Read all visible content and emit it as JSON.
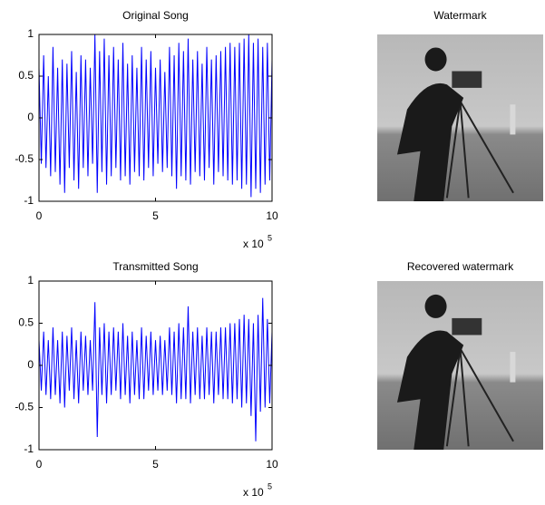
{
  "chart_data": [
    {
      "type": "line",
      "title": "Original Song",
      "xlim": [
        0,
        10
      ],
      "xticks": [
        0,
        5,
        10
      ],
      "ylim": [
        -1,
        1
      ],
      "yticks": [
        -1,
        -0.5,
        0,
        0.5,
        1
      ],
      "axis_multiplier": "x 10",
      "axis_exponent": 5,
      "series": [
        {
          "color": "#0000ff",
          "x": [
            0,
            0.1,
            0.2,
            0.3,
            0.4,
            0.5,
            0.6,
            0.7,
            0.8,
            0.9,
            1,
            1.1,
            1.2,
            1.3,
            1.4,
            1.5,
            1.6,
            1.7,
            1.8,
            1.9,
            2,
            2.1,
            2.2,
            2.3,
            2.4,
            2.5,
            2.6,
            2.7,
            2.8,
            2.9,
            3,
            3.1,
            3.2,
            3.3,
            3.4,
            3.5,
            3.6,
            3.7,
            3.8,
            3.9,
            4,
            4.1,
            4.2,
            4.3,
            4.4,
            4.5,
            4.6,
            4.7,
            4.8,
            4.9,
            5,
            5.1,
            5.2,
            5.3,
            5.4,
            5.5,
            5.6,
            5.7,
            5.8,
            5.9,
            6,
            6.1,
            6.2,
            6.3,
            6.4,
            6.5,
            6.6,
            6.7,
            6.8,
            6.9,
            7,
            7.1,
            7.2,
            7.3,
            7.4,
            7.5,
            7.6,
            7.7,
            7.8,
            7.9,
            8,
            8.1,
            8.2,
            8.3,
            8.4,
            8.5,
            8.6,
            8.7,
            8.8,
            8.9,
            9,
            9.1,
            9.2,
            9.3,
            9.4,
            9.5,
            9.6,
            9.7,
            9.8,
            9.9,
            10
          ],
          "values": [
            0.6,
            -0.55,
            0.75,
            -0.6,
            0.5,
            -0.7,
            0.85,
            -0.65,
            0.6,
            -0.8,
            0.7,
            -0.9,
            0.65,
            -0.6,
            0.8,
            -0.75,
            0.55,
            -0.85,
            0.75,
            -0.6,
            0.7,
            -0.7,
            0.6,
            -0.55,
            1,
            -0.9,
            0.8,
            -0.65,
            0.95,
            -0.8,
            0.75,
            -0.7,
            0.85,
            -0.6,
            0.7,
            -0.75,
            0.9,
            -0.7,
            0.65,
            -0.8,
            0.75,
            -0.65,
            0.6,
            -0.7,
            0.85,
            -0.75,
            0.7,
            -0.6,
            0.8,
            -0.7,
            0.6,
            -0.55,
            0.7,
            -0.65,
            0.55,
            -0.6,
            0.85,
            -0.7,
            0.75,
            -0.85,
            0.9,
            -0.7,
            0.8,
            -0.75,
            0.95,
            -0.8,
            0.7,
            -0.65,
            0.8,
            -0.7,
            0.65,
            -0.75,
            0.85,
            -0.6,
            0.7,
            -0.8,
            0.75,
            -0.65,
            0.8,
            -0.7,
            0.85,
            -0.75,
            0.9,
            -0.8,
            0.85,
            -0.75,
            0.9,
            -0.85,
            0.95,
            -0.8,
            1,
            -0.95,
            0.9,
            -0.85,
            0.95,
            -0.9,
            0.85,
            -0.8,
            0.9,
            -0.75,
            0.7
          ]
        }
      ]
    },
    {
      "type": "image",
      "title": "Watermark"
    },
    {
      "type": "line",
      "title": "Transmitted Song",
      "xlim": [
        0,
        10
      ],
      "xticks": [
        0,
        5,
        10
      ],
      "ylim": [
        -1,
        1
      ],
      "yticks": [
        -1,
        -0.5,
        0,
        0.5,
        1
      ],
      "axis_multiplier": "x 10",
      "axis_exponent": 5,
      "series": [
        {
          "color": "#0000ff",
          "x": [
            0,
            0.1,
            0.2,
            0.3,
            0.4,
            0.5,
            0.6,
            0.7,
            0.8,
            0.9,
            1,
            1.1,
            1.2,
            1.3,
            1.4,
            1.5,
            1.6,
            1.7,
            1.8,
            1.9,
            2,
            2.1,
            2.2,
            2.3,
            2.4,
            2.5,
            2.6,
            2.7,
            2.8,
            2.9,
            3,
            3.1,
            3.2,
            3.3,
            3.4,
            3.5,
            3.6,
            3.7,
            3.8,
            3.9,
            4,
            4.1,
            4.2,
            4.3,
            4.4,
            4.5,
            4.6,
            4.7,
            4.8,
            4.9,
            5,
            5.1,
            5.2,
            5.3,
            5.4,
            5.5,
            5.6,
            5.7,
            5.8,
            5.9,
            6,
            6.1,
            6.2,
            6.3,
            6.4,
            6.5,
            6.6,
            6.7,
            6.8,
            6.9,
            7,
            7.1,
            7.2,
            7.3,
            7.4,
            7.5,
            7.6,
            7.7,
            7.8,
            7.9,
            8,
            8.1,
            8.2,
            8.3,
            8.4,
            8.5,
            8.6,
            8.7,
            8.8,
            8.9,
            9,
            9.1,
            9.2,
            9.3,
            9.4,
            9.5,
            9.6,
            9.7,
            9.8,
            9.9,
            10
          ],
          "values": [
            0.3,
            -0.3,
            0.4,
            -0.35,
            0.3,
            -0.4,
            0.45,
            -0.35,
            0.3,
            -0.45,
            0.4,
            -0.5,
            0.35,
            -0.3,
            0.45,
            -0.4,
            0.3,
            -0.45,
            0.4,
            -0.3,
            0.35,
            -0.35,
            0.3,
            -0.3,
            0.75,
            -0.85,
            0.45,
            -0.35,
            0.5,
            -0.45,
            0.4,
            -0.35,
            0.45,
            -0.3,
            0.4,
            -0.4,
            0.5,
            -0.35,
            0.35,
            -0.45,
            0.4,
            -0.35,
            0.3,
            -0.4,
            0.45,
            -0.4,
            0.35,
            -0.3,
            0.4,
            -0.35,
            0.3,
            -0.3,
            0.35,
            -0.35,
            0.3,
            -0.3,
            0.45,
            -0.35,
            0.4,
            -0.45,
            0.5,
            -0.4,
            0.45,
            -0.4,
            0.7,
            -0.45,
            0.4,
            -0.35,
            0.45,
            -0.4,
            0.35,
            -0.4,
            0.45,
            -0.35,
            0.4,
            -0.45,
            0.4,
            -0.35,
            0.45,
            -0.4,
            0.45,
            -0.4,
            0.5,
            -0.45,
            0.5,
            -0.4,
            0.55,
            -0.5,
            0.6,
            -0.45,
            0.55,
            -0.6,
            0.5,
            -0.9,
            0.6,
            -0.55,
            0.8,
            -0.5,
            0.55,
            -0.45,
            0.4
          ]
        }
      ]
    },
    {
      "type": "image",
      "title": "Recovered watermark"
    }
  ]
}
